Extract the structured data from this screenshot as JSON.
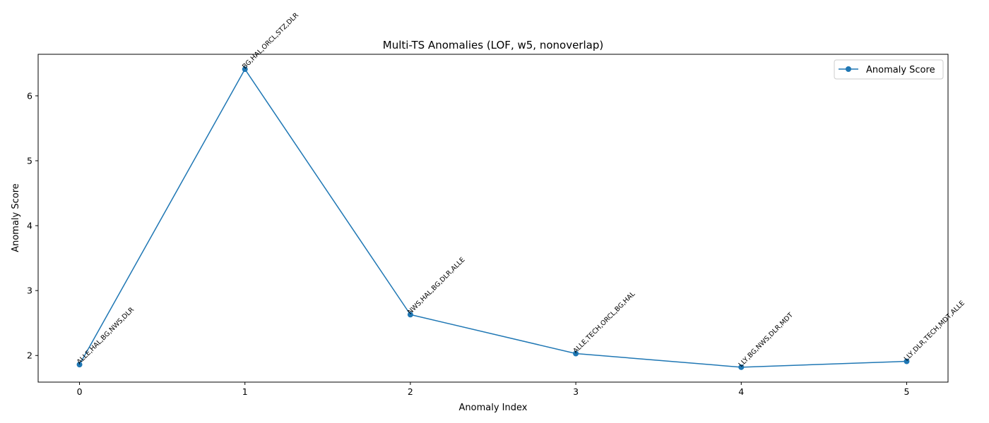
{
  "chart_data": {
    "type": "line",
    "title": "Multi-TS Anomalies (LOF, w5, nonoverlap)",
    "xlabel": "Anomaly Index",
    "ylabel": "Anomaly Score",
    "x": [
      0,
      1,
      2,
      3,
      4,
      5
    ],
    "xlim": [
      -0.25,
      5.25
    ],
    "ylim": [
      1.59,
      6.64
    ],
    "xticks": [
      "0",
      "1",
      "2",
      "3",
      "4",
      "5"
    ],
    "yticks": [
      "2",
      "3",
      "4",
      "5",
      "6"
    ],
    "series": [
      {
        "name": "Anomaly Score",
        "color": "#1f77b4",
        "marker": "circle",
        "values": [
          1.86,
          6.41,
          2.63,
          2.03,
          1.82,
          1.91
        ]
      }
    ],
    "point_labels": [
      "ALLE,HAL,BG,NWS,DLR",
      "BG,HAL,ORCL,STZ,DLR",
      "NWS,HAL,BG,DLR,ALLE",
      "ALLE,TECH,ORCL,BG,HAL",
      "LLY,BG,NWS,DLR,MDT",
      "LLY,DLR,TECH,MDT,ALLE"
    ],
    "legend": {
      "position": "top-right",
      "entries": [
        "Anomaly Score"
      ]
    },
    "grid": false
  }
}
